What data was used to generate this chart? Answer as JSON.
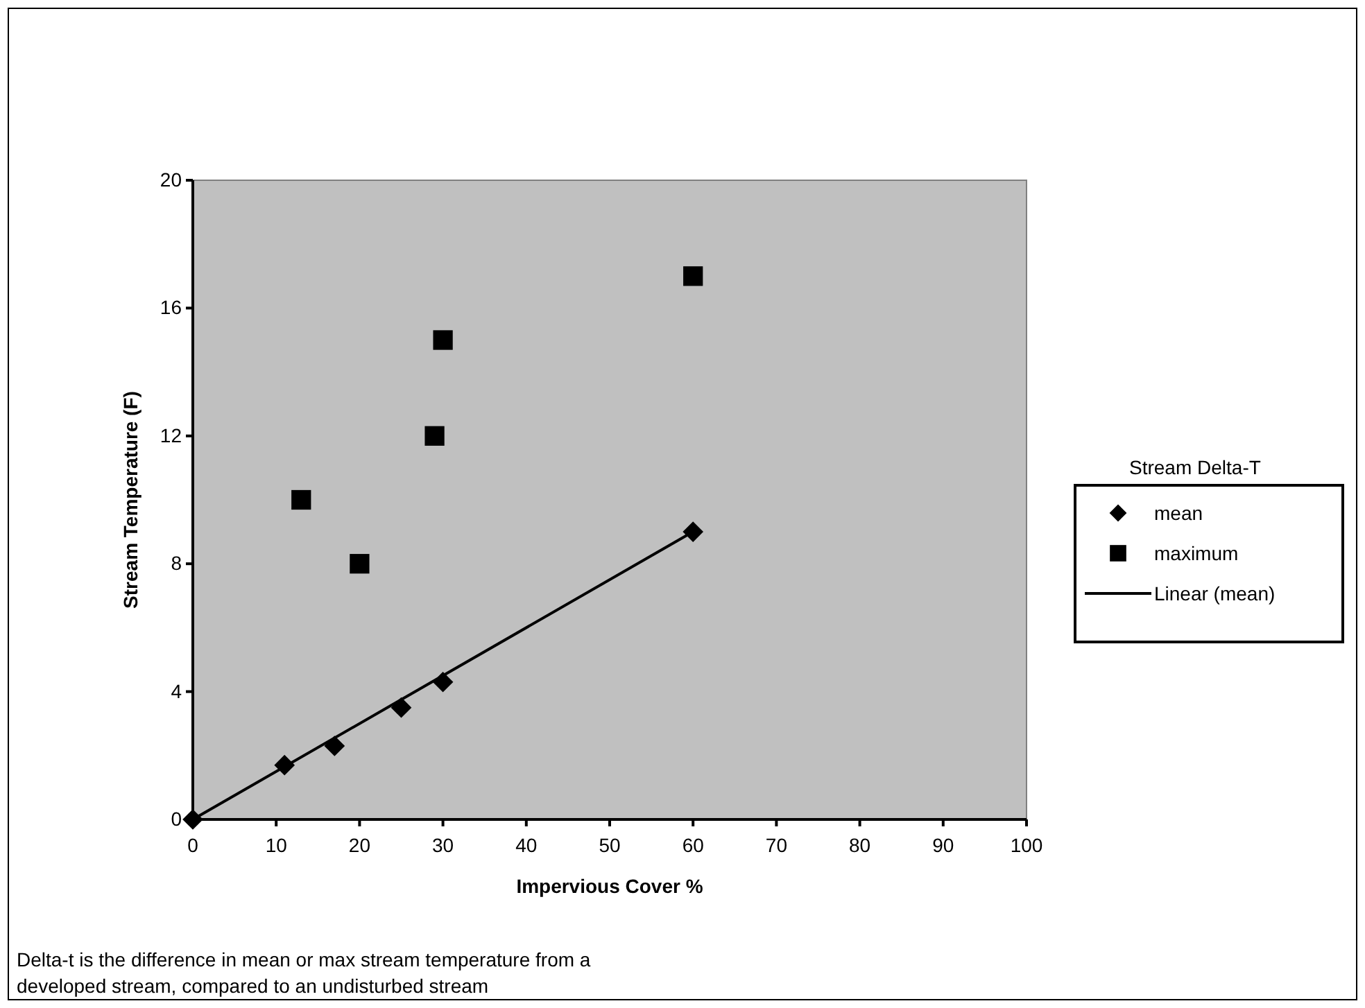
{
  "chart_data": {
    "type": "scatter",
    "xlabel": "Impervious Cover %",
    "ylabel": "Stream Temperature (F)",
    "legend_title": "Stream Delta-T",
    "annotations": [
      "Delta-t is the difference in mean or max stream temperature from a developed stream, compared to an undisturbed stream"
    ],
    "xlim": [
      0,
      100
    ],
    "xticks": [
      0,
      10,
      20,
      30,
      40,
      50,
      60,
      70,
      80,
      90,
      100
    ],
    "ylim": [
      0,
      20
    ],
    "yticks": [
      0,
      4,
      8,
      12,
      16,
      20
    ],
    "grid": false,
    "legend": "right",
    "series": [
      {
        "name": "mean",
        "marker": "diamond",
        "color": "#000000",
        "x": [
          0,
          11,
          17,
          25,
          30,
          60
        ],
        "values": [
          0,
          1.7,
          2.3,
          3.5,
          4.3,
          9.0
        ]
      },
      {
        "name": "maximum",
        "marker": "square",
        "color": "#000000",
        "x": [
          13,
          20,
          29,
          30,
          60
        ],
        "values": [
          10,
          8,
          12,
          15,
          17
        ]
      },
      {
        "name": "Linear (mean)",
        "type": "line",
        "marker": "none",
        "line_style": "solid",
        "color": "#000000",
        "x": [
          0,
          60
        ],
        "values": [
          0,
          9.0
        ]
      }
    ]
  }
}
